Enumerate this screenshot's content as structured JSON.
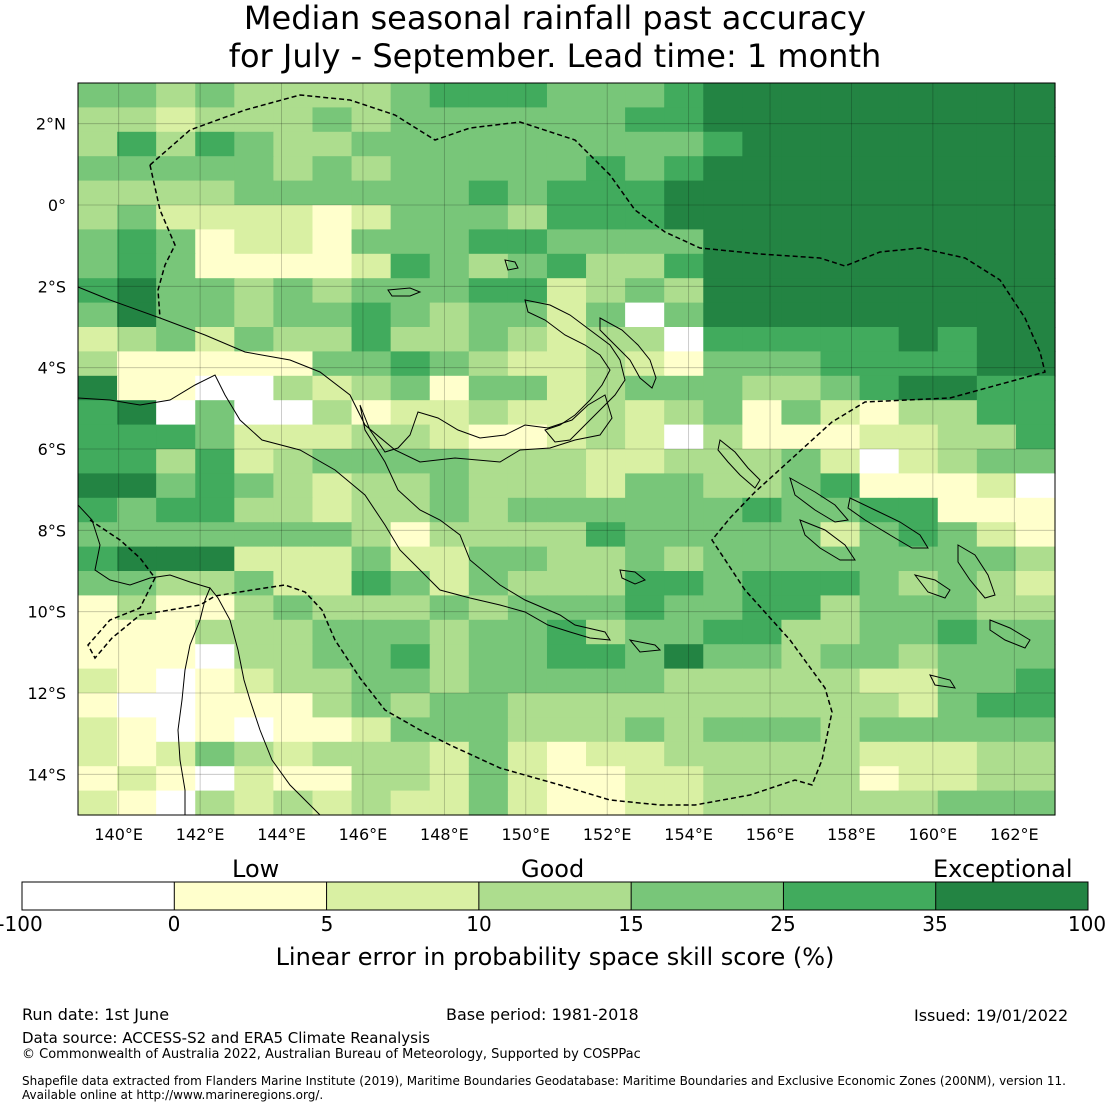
{
  "title": {
    "line1": "Median seasonal rainfall past accuracy",
    "line2": "for July - September. Lead time: 1 month"
  },
  "map": {
    "lon_labels": [
      "140°E",
      "142°E",
      "144°E",
      "146°E",
      "148°E",
      "150°E",
      "152°E",
      "154°E",
      "156°E",
      "158°E",
      "160°E",
      "162°E"
    ],
    "lat_labels": [
      "2°N",
      "0°",
      "2°S",
      "4°S",
      "6°S",
      "8°S",
      "10°S",
      "12°S",
      "14°S"
    ],
    "lon_range": [
      139,
      163
    ],
    "lat_range": [
      -15,
      3
    ]
  },
  "colorbar": {
    "categories": [
      "Low",
      "Good",
      "Exceptional"
    ],
    "ticks": [
      "-100",
      "0",
      "5",
      "10",
      "15",
      "25",
      "35",
      "100"
    ],
    "colors": [
      "#ffffff",
      "#ffffcc",
      "#d9f0a3",
      "#addd8e",
      "#78c679",
      "#41ab5d",
      "#238443"
    ],
    "label": "Linear error in probability space skill score (%)"
  },
  "footer": {
    "run_date": "Run date: 1st June",
    "base_period": "Base period: 1981-2018",
    "issued": "Issued: 19/01/2022",
    "data_source": "Data source: ACCESS-S2 and ERA5 Climate Reanalysis",
    "copyright": "© Commonwealth of Australia 2022, Australian Bureau of Meteorology, Supported by COSPPac",
    "shapefile_1": "Shapefile data extracted from Flanders Marine Institute (2019), Maritime Boundaries Geodatabase: Maritime Boundaries and Exclusive Economic Zones (200NM), version 11.",
    "shapefile_2": "Available online at http://www.marineregions.org/."
  }
}
